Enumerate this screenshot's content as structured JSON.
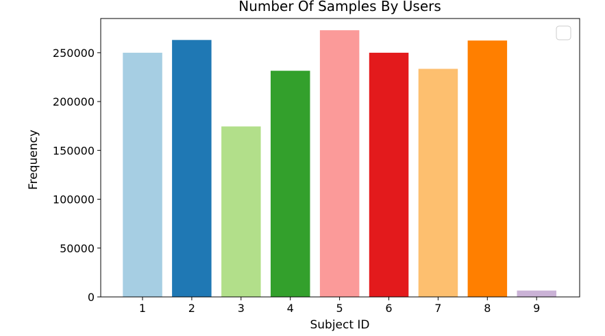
{
  "chart_data": {
    "type": "bar",
    "title": "Number Of Samples By Users",
    "xlabel": "Subject ID",
    "ylabel": "Frequency",
    "categories": [
      "1",
      "2",
      "3",
      "4",
      "5",
      "6",
      "7",
      "8",
      "9"
    ],
    "values": [
      250000,
      263000,
      174500,
      231500,
      273000,
      250000,
      233500,
      262500,
      6500
    ],
    "colors": [
      "#a6cee3",
      "#1f78b4",
      "#b2df8a",
      "#33a02c",
      "#fb9a99",
      "#e31a1c",
      "#fdbf6f",
      "#ff7f00",
      "#cab2d6"
    ],
    "ylim": [
      0,
      285000
    ],
    "yticks": [
      0,
      50000,
      100000,
      150000,
      200000,
      250000
    ],
    "ytick_labels": [
      "0",
      "50000",
      "100000",
      "150000",
      "200000",
      "250000"
    ],
    "grid": false,
    "legend": {
      "placement": "top-right",
      "entries": []
    }
  }
}
